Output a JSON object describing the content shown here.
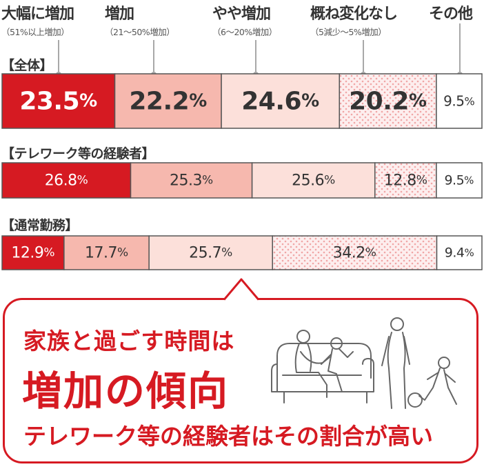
{
  "chart_data": {
    "type": "bar",
    "orientation": "horizontal",
    "stacked": true,
    "normalized_percent": true,
    "categories": [
      {
        "name": "大幅に増加",
        "sub": "（51%以上増加）"
      },
      {
        "name": "増加",
        "sub": "（21〜50%増加）"
      },
      {
        "name": "やや増加",
        "sub": "（6〜20%増加）"
      },
      {
        "name": "概ね変化なし",
        "sub": "（5減少〜5%増加）"
      },
      {
        "name": "その他",
        "sub": ""
      }
    ],
    "groups": [
      {
        "label": "【全体】",
        "values": [
          23.5,
          22.2,
          24.6,
          20.2,
          9.5
        ]
      },
      {
        "label": "【テレワーク等の経験者】",
        "values": [
          26.8,
          25.3,
          25.6,
          12.8,
          9.5
        ]
      },
      {
        "label": "【通常勤務】",
        "values": [
          12.9,
          17.7,
          25.7,
          34.2,
          9.4
        ]
      }
    ],
    "value_suffix": "%",
    "colors": [
      "#d61a22",
      "#f6b8ae",
      "#fce0da",
      "#fce4e4",
      "#ffffff"
    ],
    "fill_patterns": [
      "solid",
      "solid",
      "solid",
      "dots",
      "solid"
    ]
  },
  "callout": {
    "line1": "家族と過ごす時間は",
    "line2": "増加の傾向",
    "line3": "テレワーク等の経験者はその割合が高い",
    "illustration": "family-figures-icon",
    "accent_color": "#d61a22"
  }
}
